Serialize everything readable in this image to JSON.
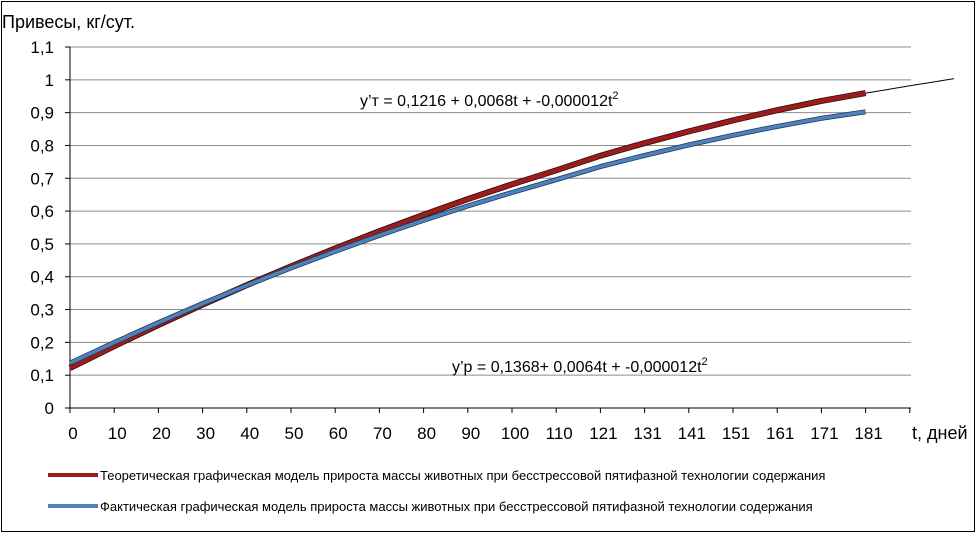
{
  "chart_data": {
    "type": "line",
    "ylabel": "Привесы, кг/сут.",
    "xlabel": "t, дней",
    "ylim": [
      0,
      1.1
    ],
    "y_ticks": [
      "0",
      "0,1",
      "0,2",
      "0,3",
      "0,4",
      "0,5",
      "0,6",
      "0,7",
      "0,8",
      "0,9",
      "1",
      "1,1"
    ],
    "x_ticks": [
      "0",
      "10",
      "20",
      "30",
      "40",
      "50",
      "60",
      "70",
      "80",
      "90",
      "100",
      "110",
      "121",
      "131",
      "141",
      "151",
      "161",
      "171",
      "181"
    ],
    "grid": "horizontal",
    "legend_position": "bottom",
    "series": [
      {
        "name": "Теоретическая графическая модель прироста массы животных при бесстрессовой пятифазной технологии содержания",
        "color": "#9b1c1c",
        "x": [
          0,
          10,
          20,
          30,
          40,
          50,
          60,
          70,
          80,
          90,
          100,
          110,
          121,
          131,
          141,
          151,
          161,
          171,
          181
        ],
        "values": [
          0.1216,
          0.1884,
          0.2528,
          0.3148,
          0.3744,
          0.4316,
          0.4864,
          0.5388,
          0.5888,
          0.6364,
          0.6816,
          0.7244,
          0.7689,
          0.8071,
          0.8429,
          0.8763,
          0.9073,
          0.9359,
          0.9596
        ]
      },
      {
        "name": "Фактическая графическая модель прироста массы животных при бесстрессовой пятифазной технологии содержания",
        "color": "#4f81bd",
        "x": [
          0,
          10,
          20,
          30,
          40,
          50,
          60,
          70,
          80,
          90,
          100,
          110,
          121,
          131,
          141,
          151,
          161,
          171,
          181
        ],
        "values": [
          0.1368,
          0.1996,
          0.26,
          0.318,
          0.3736,
          0.4268,
          0.4776,
          0.526,
          0.572,
          0.6156,
          0.6568,
          0.6956,
          0.7356,
          0.7698,
          0.8016,
          0.831,
          0.858,
          0.8826,
          0.9024
        ]
      }
    ],
    "annotations": [
      {
        "id": "theoretical",
        "text": "y’т = 0,1216 + 0,0068t + -0,000012t",
        "sup": "2"
      },
      {
        "id": "factual",
        "text": "y’р = 0,1368+ 0,0064t + -0,000012t",
        "sup": "2"
      }
    ]
  }
}
